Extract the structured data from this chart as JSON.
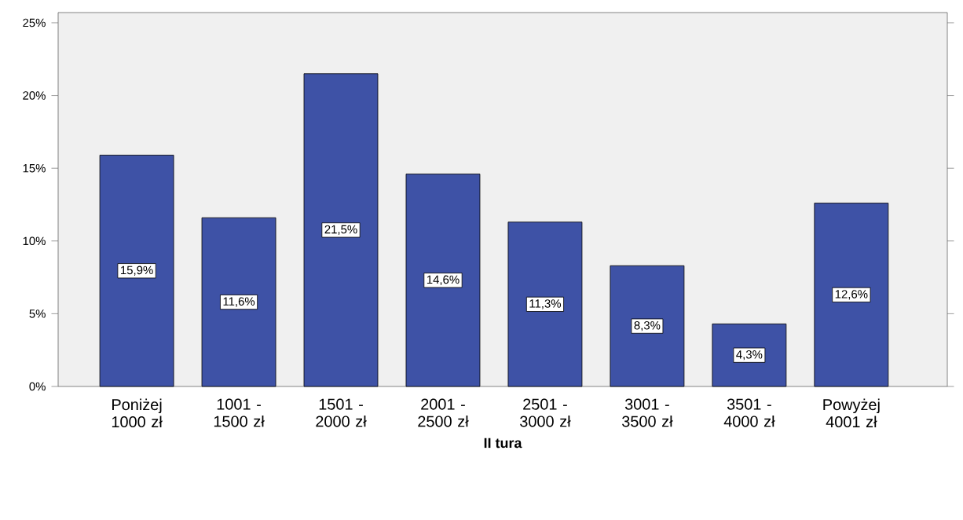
{
  "chart_data": {
    "type": "bar",
    "xlabel": "II tura",
    "categories": [
      "Poniżej 1000 zł",
      "1001 - 1500 zł",
      "1501 - 2000 zł",
      "2001 - 2500 zł",
      "2501 - 3000 zł",
      "3001 - 3500 zł",
      "3501 - 4000 zł",
      "Powyżej 4001 zł"
    ],
    "values": [
      15.9,
      11.6,
      21.5,
      14.6,
      11.3,
      8.3,
      4.3,
      12.6
    ],
    "value_labels": [
      "15,9%",
      "11,6%",
      "21,5%",
      "14,6%",
      "11,3%",
      "8,3%",
      "4,3%",
      "12,6%"
    ],
    "color": "#3e52a6",
    "ylim": [
      0,
      25.7
    ],
    "yticks": [
      {
        "value": 0,
        "label": "0%"
      },
      {
        "value": 5,
        "label": "5%"
      },
      {
        "value": 10,
        "label": "10%"
      },
      {
        "value": 15,
        "label": "15%"
      },
      {
        "value": 20,
        "label": "20%"
      },
      {
        "value": 25,
        "label": "25%"
      }
    ],
    "grid": false
  }
}
